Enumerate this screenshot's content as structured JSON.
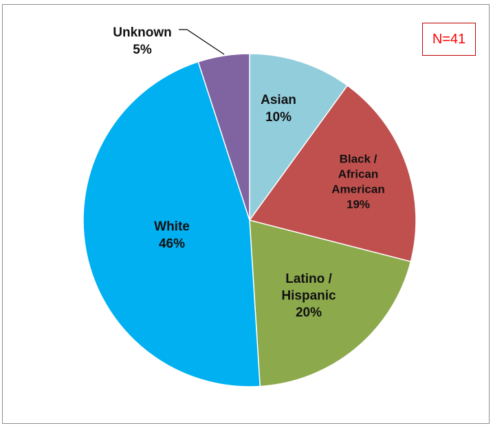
{
  "chart_data": {
    "type": "pie",
    "annotation": "N=41",
    "categories": [
      "Asian",
      "Black / African American",
      "Latino / Hispanic",
      "White",
      "Unknown"
    ],
    "values": [
      10,
      19,
      20,
      46,
      5
    ],
    "value_labels": [
      "10%",
      "19%",
      "20%",
      "46%",
      "5%"
    ],
    "label_lines": [
      [
        "Asian"
      ],
      [
        "Black /",
        "African",
        "American"
      ],
      [
        "Latino /",
        "Hispanic"
      ],
      [
        "White"
      ],
      [
        "Unknown"
      ]
    ],
    "colors": [
      "#92cddc",
      "#c0504d",
      "#8ca94c",
      "#00b0f0",
      "#8064a2"
    ],
    "start_angle": "12 o'clock",
    "direction": "clockwise",
    "legend": "none"
  }
}
